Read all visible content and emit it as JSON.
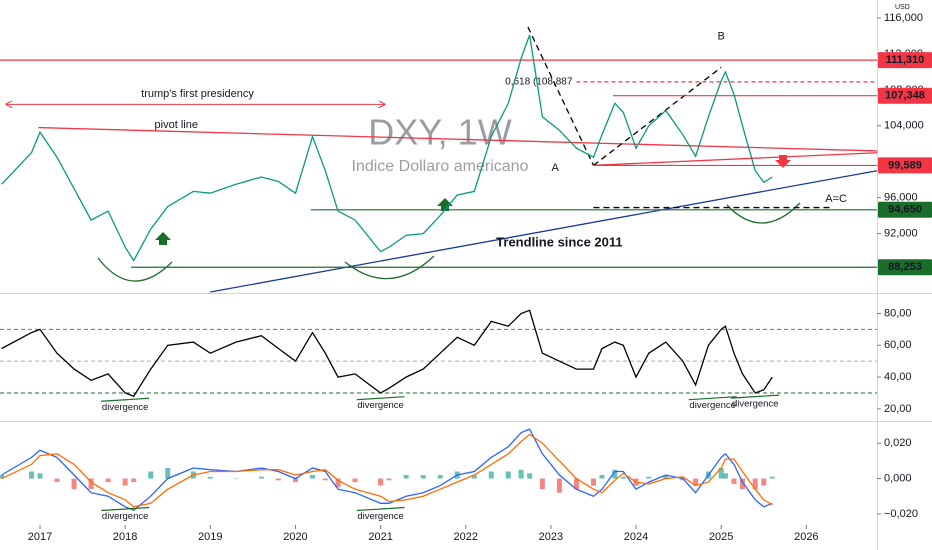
{
  "chart_data": [
    {
      "type": "line",
      "title": "DXY, 1W",
      "subtitle": "Indice Dollaro americano",
      "unit": "USD",
      "xlim": [
        2016.53,
        2026.83
      ],
      "ylim": [
        85500,
        118000
      ],
      "yticks": [
        {
          "value": 116000,
          "label": "116,000"
        },
        {
          "value": 112000,
          "label": "112,000"
        },
        {
          "value": 108000,
          "label": "108,000"
        },
        {
          "value": 104000,
          "label": "104,000"
        },
        {
          "value": 96000,
          "label": "96,000"
        },
        {
          "value": 92000,
          "label": "92,000"
        }
      ],
      "x": [
        2016.55,
        2016.9,
        2017.0,
        2017.2,
        2017.4,
        2017.6,
        2017.8,
        2018.0,
        2018.1,
        2018.3,
        2018.5,
        2018.8,
        2019.0,
        2019.3,
        2019.6,
        2019.8,
        2020.0,
        2020.2,
        2020.35,
        2020.5,
        2020.7,
        2021.0,
        2021.1,
        2021.3,
        2021.5,
        2021.7,
        2021.9,
        2022.1,
        2022.3,
        2022.5,
        2022.65,
        2022.75,
        2022.9,
        2023.1,
        2023.3,
        2023.5,
        2023.6,
        2023.75,
        2023.85,
        2024.0,
        2024.15,
        2024.35,
        2024.55,
        2024.7,
        2024.85,
        2025.0,
        2025.05,
        2025.15,
        2025.25,
        2025.4,
        2025.5,
        2025.6
      ],
      "series": [
        {
          "color": "#089981",
          "values": [
            97500,
            101000,
            103300,
            100500,
            97000,
            93500,
            94500,
            90500,
            89000,
            92500,
            95000,
            96700,
            96500,
            97500,
            98300,
            97800,
            96500,
            102800,
            99000,
            94500,
            93500,
            90000,
            90500,
            91800,
            92000,
            94000,
            96300,
            96700,
            102800,
            106500,
            111500,
            114100,
            105000,
            103500,
            101500,
            100500,
            103000,
            106500,
            105500,
            101500,
            104000,
            105700,
            103000,
            100600,
            105000,
            109000,
            110000,
            107500,
            104000,
            99000,
            97700,
            98300
          ]
        }
      ],
      "levels": [
        {
          "value": 111310,
          "label": "111,310",
          "color": "#f23645",
          "from": 2016.53
        },
        {
          "value": 108887,
          "label": "0,618 (108,887",
          "color": "#f23645",
          "from": 2023.3,
          "dash": true
        },
        {
          "value": 107348,
          "label": "107,348",
          "color": "#f23645",
          "from": 2023.73
        },
        {
          "value": 99589,
          "label": "99,589",
          "color": "#f23645",
          "from": 2023.5
        },
        {
          "value": 94650,
          "label": "94,650",
          "color": "#1b6e2a",
          "from": 2020.18
        },
        {
          "value": 88253,
          "label": "88,253",
          "color": "#1b6e2a",
          "from": 2018.07
        }
      ],
      "segments": [
        {
          "x": [
            2016.98,
            2026.83
          ],
          "y": [
            103800,
            101200
          ],
          "color": "#f23645"
        },
        {
          "x": [
            2023.5,
            2026.83
          ],
          "y": [
            99600,
            101000
          ],
          "color": "#f23645"
        },
        {
          "x": [
            2019.0,
            2026.83
          ],
          "y": [
            85500,
            99000
          ],
          "color": "#1a3a9c"
        },
        {
          "x": [
            2022.73,
            2023.5
          ],
          "y": [
            115000,
            99589
          ],
          "color": "#000000",
          "dash": true
        },
        {
          "x": [
            2023.5,
            2025.0
          ],
          "y": [
            99589,
            110500
          ],
          "color": "#000000",
          "dash": true
        },
        {
          "x": [
            2023.5,
            2026.3
          ],
          "y": [
            94900,
            94900
          ],
          "color": "#000000",
          "dash": true
        }
      ],
      "annotations": [
        {
          "text": "trump's first presidency",
          "x": 2018.85,
          "y": 107500,
          "color": "#f23645",
          "x_range": [
            2016.6,
            2021.05
          ]
        },
        {
          "text": "pivot line",
          "x": 2018.6,
          "y": 104100,
          "color": "#1a3a9c"
        },
        {
          "text": "A",
          "x": 2023.05,
          "y": 99300,
          "color": "#131722"
        },
        {
          "text": "B",
          "x": 2025.0,
          "y": 113900,
          "color": "#131722"
        },
        {
          "text": "A=C",
          "x": 2026.35,
          "y": 95850,
          "color": "#131722"
        },
        {
          "text": "Trendline since 2011",
          "x": 2023.1,
          "y": 90950,
          "color": "#1a3a9c",
          "bold": true
        }
      ]
    },
    {
      "type": "line",
      "xlim": [
        2016.53,
        2026.83
      ],
      "ylim": [
        13,
        91
      ],
      "yticks": [
        {
          "value": 80,
          "label": "80,00"
        },
        {
          "value": 60,
          "label": "60,00"
        },
        {
          "value": 40,
          "label": "40,00"
        },
        {
          "value": 20,
          "label": "20,00"
        }
      ],
      "hlines": [
        {
          "value": 70,
          "color": "#f23645"
        },
        {
          "value": 50,
          "color": "#aaaaaa"
        },
        {
          "value": 30,
          "color": "#1b6e2a"
        }
      ],
      "x": [
        2016.55,
        2016.9,
        2017.0,
        2017.2,
        2017.4,
        2017.6,
        2017.8,
        2018.0,
        2018.1,
        2018.3,
        2018.5,
        2018.8,
        2019.0,
        2019.3,
        2019.6,
        2019.8,
        2020.0,
        2020.2,
        2020.35,
        2020.5,
        2020.7,
        2021.0,
        2021.1,
        2021.3,
        2021.5,
        2021.7,
        2021.9,
        2022.1,
        2022.3,
        2022.5,
        2022.65,
        2022.75,
        2022.9,
        2023.1,
        2023.3,
        2023.5,
        2023.6,
        2023.75,
        2023.85,
        2024.0,
        2024.15,
        2024.35,
        2024.55,
        2024.7,
        2024.85,
        2025.0,
        2025.05,
        2025.15,
        2025.25,
        2025.4,
        2025.5,
        2025.6
      ],
      "series": [
        {
          "color": "#000000",
          "values": [
            58,
            68,
            70,
            55,
            45,
            38,
            42,
            30,
            28,
            45,
            60,
            62,
            55,
            62,
            66,
            58,
            50,
            68,
            55,
            40,
            42,
            30,
            33,
            40,
            45,
            55,
            65,
            60,
            75,
            72,
            80,
            82,
            55,
            50,
            45,
            45,
            58,
            62,
            60,
            40,
            55,
            62,
            50,
            35,
            60,
            70,
            72,
            55,
            42,
            30,
            32,
            40
          ]
        }
      ],
      "annotations": [
        {
          "text": "divergence",
          "x": 2018.0,
          "y": 21,
          "color": "#1b6e2a"
        },
        {
          "text": "divergence",
          "x": 2021.0,
          "y": 22,
          "color": "#1b6e2a"
        },
        {
          "text": "divergence",
          "x": 2024.9,
          "y": 22,
          "color": "#1b6e2a"
        },
        {
          "text": "divergence",
          "x": 2025.4,
          "y": 23,
          "color": "#1b6e2a"
        }
      ]
    },
    {
      "type": "line",
      "xlim": [
        2016.53,
        2026.83
      ],
      "ylim": [
        -0.0263,
        0.0309
      ],
      "xticks": [
        2017,
        2018,
        2019,
        2020,
        2021,
        2022,
        2023,
        2024,
        2025,
        2026
      ],
      "yticks": [
        {
          "value": 0.02,
          "label": "0,020"
        },
        {
          "value": 0,
          "label": "0,000"
        },
        {
          "value": -0.02,
          "label": "−0,020"
        }
      ],
      "x": [
        2016.55,
        2016.9,
        2017.0,
        2017.2,
        2017.4,
        2017.6,
        2017.8,
        2018.0,
        2018.1,
        2018.3,
        2018.5,
        2018.8,
        2019.0,
        2019.3,
        2019.6,
        2019.8,
        2020.0,
        2020.2,
        2020.35,
        2020.5,
        2020.7,
        2021.0,
        2021.1,
        2021.3,
        2021.5,
        2021.7,
        2021.9,
        2022.1,
        2022.3,
        2022.5,
        2022.65,
        2022.75,
        2022.9,
        2023.1,
        2023.3,
        2023.5,
        2023.6,
        2023.75,
        2023.85,
        2024.0,
        2024.15,
        2024.35,
        2024.55,
        2024.7,
        2024.85,
        2025.0,
        2025.05,
        2025.15,
        2025.25,
        2025.4,
        2025.5,
        2025.6
      ],
      "series": [
        {
          "type": "bar",
          "color": "#26a69a",
          "negative_color": "#ef5350",
          "values": [
            0.002,
            0.004,
            0.003,
            -0.002,
            -0.006,
            -0.006,
            -0.002,
            -0.004,
            -0.002,
            0.004,
            0.006,
            0.004,
            0.001,
            0.0,
            0.001,
            -0.001,
            -0.002,
            0.002,
            -0.001,
            -0.005,
            -0.002,
            -0.004,
            -0.001,
            0.002,
            0.002,
            0.002,
            0.004,
            0.002,
            0.004,
            0.004,
            0.005,
            0.003,
            -0.006,
            -0.008,
            -0.006,
            -0.004,
            0.002,
            0.005,
            0.001,
            -0.004,
            0.001,
            0.002,
            -0.001,
            -0.004,
            0.004,
            0.006,
            0.003,
            -0.003,
            -0.006,
            -0.006,
            -0.004,
            0.001
          ]
        },
        {
          "color": "#2962ff",
          "values": [
            0.002,
            0.012,
            0.016,
            0.012,
            0.002,
            -0.008,
            -0.01,
            -0.016,
            -0.018,
            -0.01,
            0.0,
            0.006,
            0.005,
            0.004,
            0.006,
            0.004,
            0.0,
            0.006,
            0.004,
            -0.006,
            -0.008,
            -0.014,
            -0.014,
            -0.01,
            -0.008,
            -0.004,
            0.002,
            0.004,
            0.012,
            0.018,
            0.026,
            0.028,
            0.014,
            0.002,
            -0.006,
            -0.01,
            -0.006,
            0.004,
            0.004,
            -0.006,
            -0.002,
            0.002,
            0.0,
            -0.008,
            0.002,
            0.012,
            0.014,
            0.008,
            -0.002,
            -0.012,
            -0.016,
            -0.014
          ]
        },
        {
          "color": "#ff6d00",
          "values": [
            0.0,
            0.008,
            0.013,
            0.014,
            0.008,
            -0.002,
            -0.008,
            -0.012,
            -0.016,
            -0.014,
            -0.006,
            0.002,
            0.004,
            0.004,
            0.005,
            0.005,
            0.002,
            0.004,
            0.005,
            -0.001,
            -0.006,
            -0.01,
            -0.013,
            -0.012,
            -0.01,
            -0.006,
            -0.002,
            0.002,
            0.008,
            0.014,
            0.021,
            0.025,
            0.02,
            0.01,
            0.0,
            -0.006,
            -0.008,
            -0.001,
            0.003,
            -0.002,
            -0.003,
            0.0,
            0.001,
            -0.004,
            -0.002,
            0.006,
            0.011,
            0.011,
            0.004,
            -0.006,
            -0.012,
            -0.015
          ]
        }
      ],
      "annotations": [
        {
          "text": "divergence",
          "x": 2018.0,
          "y": -0.0215,
          "color": "#1b6e2a"
        },
        {
          "text": "divergence",
          "x": 2021.0,
          "y": -0.0215,
          "color": "#1b6e2a"
        }
      ]
    }
  ]
}
